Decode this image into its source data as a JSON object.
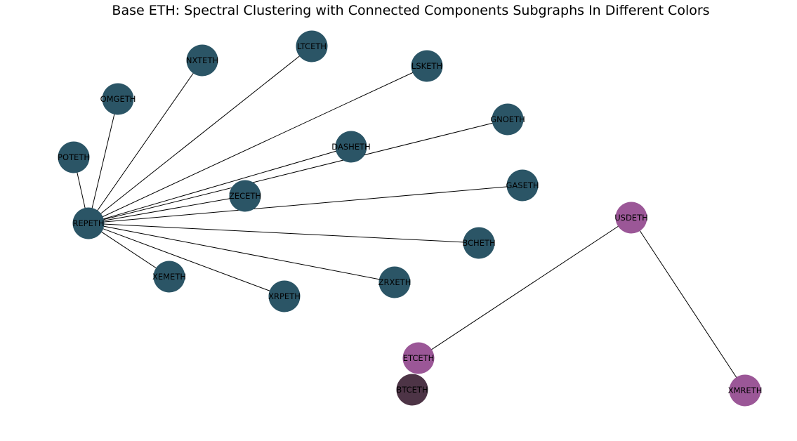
{
  "title": "Base ETH: Spectral Clustering with Connected Components Subgraphs In Different Colors",
  "colors": {
    "cluster-1": "#2b5566",
    "cluster-2": "#9b5797",
    "cluster-3": "#4d3446",
    "edge": "#000000"
  },
  "nodes": [
    {
      "id": "REPETH",
      "label": "REPETH",
      "cluster": "cluster-1"
    },
    {
      "id": "POTETH",
      "label": "POTETH",
      "cluster": "cluster-1"
    },
    {
      "id": "OMGETH",
      "label": "OMGETH",
      "cluster": "cluster-1"
    },
    {
      "id": "NXTETH",
      "label": "NXTETH",
      "cluster": "cluster-1"
    },
    {
      "id": "LTCETH",
      "label": "LTCETH",
      "cluster": "cluster-1"
    },
    {
      "id": "LSKETH",
      "label": "LSKETH",
      "cluster": "cluster-1"
    },
    {
      "id": "GNOETH",
      "label": "GNOETH",
      "cluster": "cluster-1"
    },
    {
      "id": "DASHETH",
      "label": "DASHETH",
      "cluster": "cluster-1"
    },
    {
      "id": "ZECETH",
      "label": "ZECETH",
      "cluster": "cluster-1"
    },
    {
      "id": "GASETH",
      "label": "GASETH",
      "cluster": "cluster-1"
    },
    {
      "id": "BCHETH",
      "label": "BCHETH",
      "cluster": "cluster-1"
    },
    {
      "id": "ZRXETH",
      "label": "ZRXETH",
      "cluster": "cluster-1"
    },
    {
      "id": "XRPETH",
      "label": "XRPETH",
      "cluster": "cluster-1"
    },
    {
      "id": "XEMETH",
      "label": "XEMETH",
      "cluster": "cluster-1"
    },
    {
      "id": "USDETH",
      "label": "USDETH",
      "cluster": "cluster-2"
    },
    {
      "id": "ETCETH",
      "label": "ETCETH",
      "cluster": "cluster-2"
    },
    {
      "id": "XMRETH",
      "label": "XMRETH",
      "cluster": "cluster-2"
    },
    {
      "id": "BTCETH",
      "label": "BTCETH",
      "cluster": "cluster-3"
    }
  ],
  "edges": [
    [
      "REPETH",
      "POTETH"
    ],
    [
      "REPETH",
      "OMGETH"
    ],
    [
      "REPETH",
      "NXTETH"
    ],
    [
      "REPETH",
      "LTCETH"
    ],
    [
      "REPETH",
      "LSKETH"
    ],
    [
      "REPETH",
      "GNOETH"
    ],
    [
      "REPETH",
      "DASHETH"
    ],
    [
      "REPETH",
      "ZECETH"
    ],
    [
      "REPETH",
      "GASETH"
    ],
    [
      "REPETH",
      "BCHETH"
    ],
    [
      "REPETH",
      "ZRXETH"
    ],
    [
      "REPETH",
      "XRPETH"
    ],
    [
      "REPETH",
      "XEMETH"
    ],
    [
      "USDETH",
      "ETCETH"
    ],
    [
      "USDETH",
      "XMRETH"
    ]
  ]
}
